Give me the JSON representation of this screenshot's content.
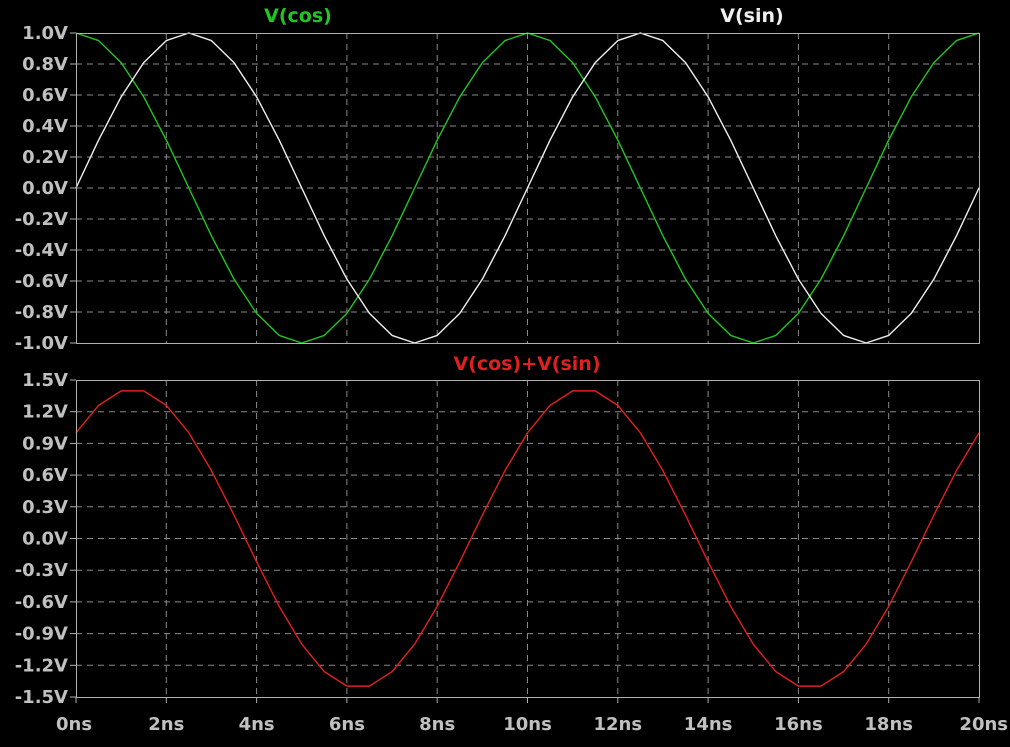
{
  "colors": {
    "background": "#000000",
    "tick_text": "#c0c0c0",
    "grid": "#8a8a8a",
    "frame": "#b0b0b0"
  },
  "chart_data": [
    {
      "type": "line",
      "xlabel": "",
      "ylabel": "",
      "x_range": [
        0,
        20
      ],
      "x_unit": "ns",
      "ylim": [
        -1.0,
        1.0
      ],
      "y_ticks": [
        "1.0V",
        "0.8V",
        "0.6V",
        "0.4V",
        "0.2V",
        "0.0V",
        "-0.2V",
        "-0.4V",
        "-0.6V",
        "-0.8V",
        "-1.0V"
      ],
      "grid": true,
      "series": [
        {
          "name": "V(cos)",
          "color": "#22c622",
          "x": [
            0,
            0.5,
            1,
            1.5,
            2,
            2.5,
            3,
            3.5,
            4,
            4.5,
            5,
            5.5,
            6,
            6.5,
            7,
            7.5,
            8,
            8.5,
            9,
            9.5,
            10,
            10.5,
            11,
            11.5,
            12,
            12.5,
            13,
            13.5,
            14,
            14.5,
            15,
            15.5,
            16,
            16.5,
            17,
            17.5,
            18,
            18.5,
            19,
            19.5,
            20
          ],
          "values": [
            1.0,
            0.951,
            0.809,
            0.588,
            0.309,
            0.0,
            -0.309,
            -0.588,
            -0.809,
            -0.951,
            -1.0,
            -0.951,
            -0.809,
            -0.588,
            -0.309,
            0.0,
            0.309,
            0.588,
            0.809,
            0.951,
            1.0,
            0.951,
            0.809,
            0.588,
            0.309,
            0.0,
            -0.309,
            -0.588,
            -0.809,
            -0.951,
            -1.0,
            -0.951,
            -0.809,
            -0.588,
            -0.309,
            0.0,
            0.309,
            0.588,
            0.809,
            0.951,
            1.0
          ]
        },
        {
          "name": "V(sin)",
          "color": "#f0f0f0",
          "x": [
            0,
            0.5,
            1,
            1.5,
            2,
            2.5,
            3,
            3.5,
            4,
            4.5,
            5,
            5.5,
            6,
            6.5,
            7,
            7.5,
            8,
            8.5,
            9,
            9.5,
            10,
            10.5,
            11,
            11.5,
            12,
            12.5,
            13,
            13.5,
            14,
            14.5,
            15,
            15.5,
            16,
            16.5,
            17,
            17.5,
            18,
            18.5,
            19,
            19.5,
            20
          ],
          "values": [
            0.0,
            0.309,
            0.588,
            0.809,
            0.951,
            1.0,
            0.951,
            0.809,
            0.588,
            0.309,
            0.0,
            -0.309,
            -0.588,
            -0.809,
            -0.951,
            -1.0,
            -0.951,
            -0.809,
            -0.588,
            -0.309,
            0.0,
            0.309,
            0.588,
            0.809,
            0.951,
            1.0,
            0.951,
            0.809,
            0.588,
            0.309,
            0.0,
            -0.309,
            -0.588,
            -0.809,
            -0.951,
            -1.0,
            -0.951,
            -0.809,
            -0.588,
            -0.309,
            0.0
          ]
        }
      ]
    },
    {
      "type": "line",
      "xlabel": "",
      "ylabel": "",
      "x_range": [
        0,
        20
      ],
      "x_unit": "ns",
      "ylim": [
        -1.5,
        1.5
      ],
      "y_ticks": [
        "1.5V",
        "1.2V",
        "0.9V",
        "0.6V",
        "0.3V",
        "0.0V",
        "-0.3V",
        "-0.6V",
        "-0.9V",
        "-1.2V",
        "-1.5V"
      ],
      "x_ticks": [
        "0ns",
        "2ns",
        "4ns",
        "6ns",
        "8ns",
        "10ns",
        "12ns",
        "14ns",
        "16ns",
        "18ns",
        "20ns"
      ],
      "grid": true,
      "series": [
        {
          "name": "V(cos)+V(sin)",
          "color": "#e02020",
          "x": [
            0,
            0.5,
            1,
            1.5,
            2,
            2.5,
            3,
            3.5,
            4,
            4.5,
            5,
            5.5,
            6,
            6.5,
            7,
            7.5,
            8,
            8.5,
            9,
            9.5,
            10,
            10.5,
            11,
            11.5,
            12,
            12.5,
            13,
            13.5,
            14,
            14.5,
            15,
            15.5,
            16,
            16.5,
            17,
            17.5,
            18,
            18.5,
            19,
            19.5,
            20
          ],
          "values": [
            1.0,
            1.26,
            1.397,
            1.397,
            1.26,
            1.0,
            0.642,
            0.221,
            -0.221,
            -0.642,
            -1.0,
            -1.26,
            -1.397,
            -1.397,
            -1.26,
            -1.0,
            -0.642,
            -0.221,
            0.221,
            0.642,
            1.0,
            1.26,
            1.397,
            1.397,
            1.26,
            1.0,
            0.642,
            0.221,
            -0.221,
            -0.642,
            -1.0,
            -1.26,
            -1.397,
            -1.397,
            -1.26,
            -1.0,
            -0.642,
            -0.221,
            0.221,
            0.642,
            1.0
          ]
        }
      ]
    }
  ]
}
